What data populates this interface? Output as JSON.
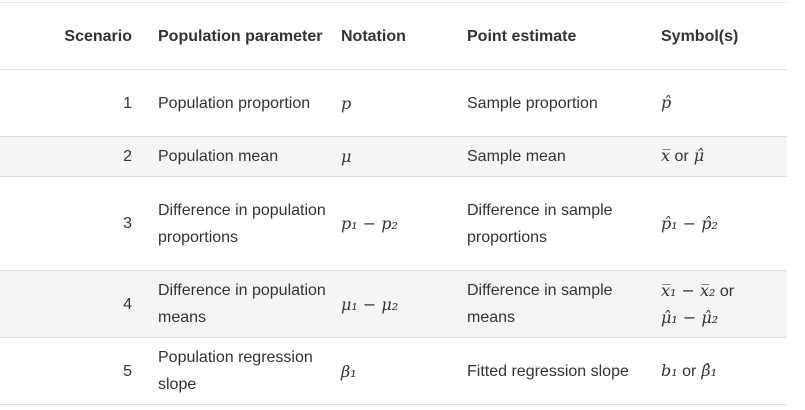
{
  "headers": {
    "scenario": "Scenario",
    "parameter": "Population parameter",
    "notation": "Notation",
    "estimate": "Point estimate",
    "symbols": "Symbol(s)"
  },
  "rows": [
    {
      "scenario": "1",
      "parameter": "Population proportion",
      "notation": "p",
      "estimate": "Sample proportion",
      "symbols": [
        "p̂"
      ]
    },
    {
      "scenario": "2",
      "parameter": "Population mean",
      "notation": "μ",
      "estimate": "Sample mean",
      "symbols": [
        "x̅ or μ̂"
      ]
    },
    {
      "scenario": "3",
      "parameter": "Difference in population proportions",
      "notation": "p₁ − p₂",
      "estimate": "Difference in sample proportions",
      "symbols": [
        "p̂₁ − p̂₂"
      ]
    },
    {
      "scenario": "4",
      "parameter": "Difference in population means",
      "notation": "μ₁ − μ₂",
      "estimate": "Difference in sample means",
      "symbols": [
        "x̅₁ − x̅₂ or",
        "μ̂₁ − μ̂₂"
      ]
    },
    {
      "scenario": "5",
      "parameter": "Population regression slope",
      "notation": "β₁",
      "estimate": "Fitted regression slope",
      "symbols": [
        "b₁ or β̂₁"
      ]
    }
  ]
}
